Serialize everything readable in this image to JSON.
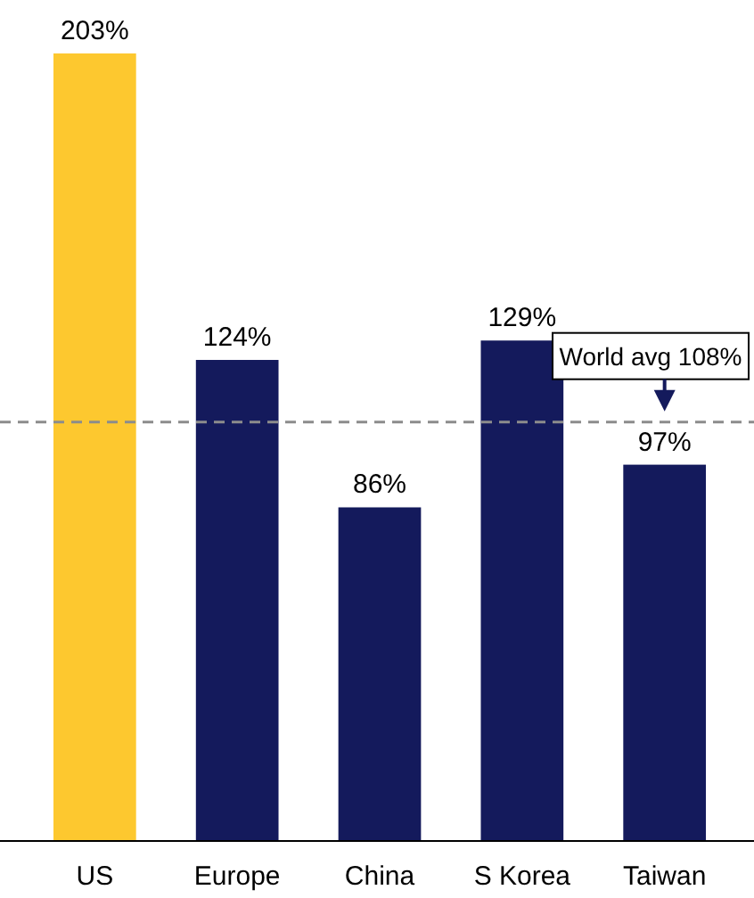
{
  "chart_data": {
    "type": "bar",
    "categories": [
      "US",
      "Europe",
      "China",
      "S Korea",
      "Taiwan"
    ],
    "values": [
      203,
      124,
      86,
      129,
      97
    ],
    "colors": [
      "#fdc82f",
      "#141a5c",
      "#141a5c",
      "#141a5c",
      "#141a5c"
    ],
    "value_labels": [
      "203%",
      "124%",
      "86%",
      "129%",
      "97%"
    ],
    "ref_lines": [
      {
        "axis": "y",
        "value": 108,
        "label": "World avg 108%",
        "color": "#8c8c8c",
        "line_style": "dashed"
      }
    ]
  }
}
